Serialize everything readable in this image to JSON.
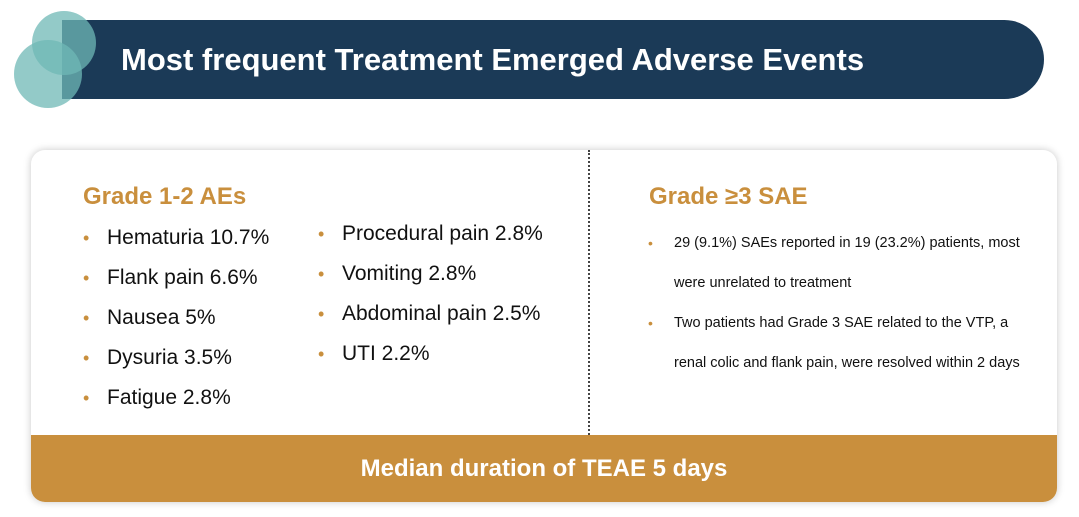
{
  "title": "Most frequent Treatment Emerged Adverse Events",
  "colors": {
    "title_bar": "#1b3a57",
    "accent": "#c98f3d",
    "deco_teal": "#6fb8b5"
  },
  "left": {
    "heading": "Grade 1-2 AEs",
    "column1": [
      "Hematuria 10.7%",
      "Flank pain 6.6%",
      "Nausea 5%",
      "Dysuria 3.5%",
      "Fatigue 2.8%"
    ],
    "column2": [
      "Procedural pain 2.8%",
      "Vomiting 2.8%",
      "Abdominal pain 2.5%",
      "UTI 2.2%"
    ]
  },
  "right": {
    "heading": "Grade ≥3 SAE",
    "items": [
      "29 (9.1%) SAEs reported in 19 (23.2%) patients, most were unrelated to treatment",
      "Two patients had Grade 3 SAE related to the VTP, a renal colic and flank pain, were resolved within 2 days"
    ]
  },
  "footer": "Median duration of TEAE 5 days",
  "bullet_glyph": "•"
}
